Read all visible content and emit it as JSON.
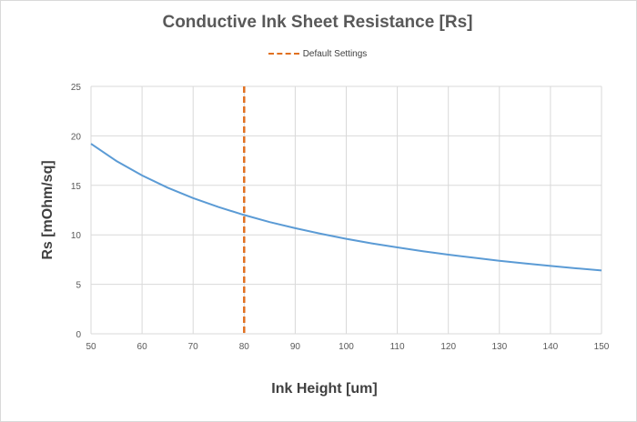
{
  "chart_data": {
    "type": "line",
    "title": "Conductive Ink Sheet Resistance [Rs]",
    "xlabel": "Ink Height [um]",
    "ylabel": "Rs  [mOhm/sq]",
    "xlim": [
      50,
      150
    ],
    "ylim": [
      0,
      25
    ],
    "x_ticks": [
      50,
      60,
      70,
      80,
      90,
      100,
      110,
      120,
      130,
      140,
      150
    ],
    "y_ticks": [
      0,
      5,
      10,
      15,
      20,
      25
    ],
    "grid": true,
    "legend_position": "top-center",
    "series": [
      {
        "values_x": [
          50,
          55,
          60,
          65,
          70,
          75,
          80,
          85,
          90,
          95,
          100,
          105,
          110,
          115,
          120,
          125,
          130,
          135,
          140,
          145,
          150
        ],
        "values_y": [
          19.2,
          17.45,
          16.0,
          14.77,
          13.71,
          12.8,
          12.0,
          11.29,
          10.67,
          10.11,
          9.6,
          9.14,
          8.73,
          8.35,
          8.0,
          7.68,
          7.38,
          7.11,
          6.86,
          6.62,
          6.4
        ],
        "color": "#5b9bd5"
      }
    ],
    "annotations": [
      {
        "name": "Default Settings",
        "type": "vertical-line",
        "x": 80,
        "color": "#e07020",
        "style": "dashed"
      }
    ]
  }
}
